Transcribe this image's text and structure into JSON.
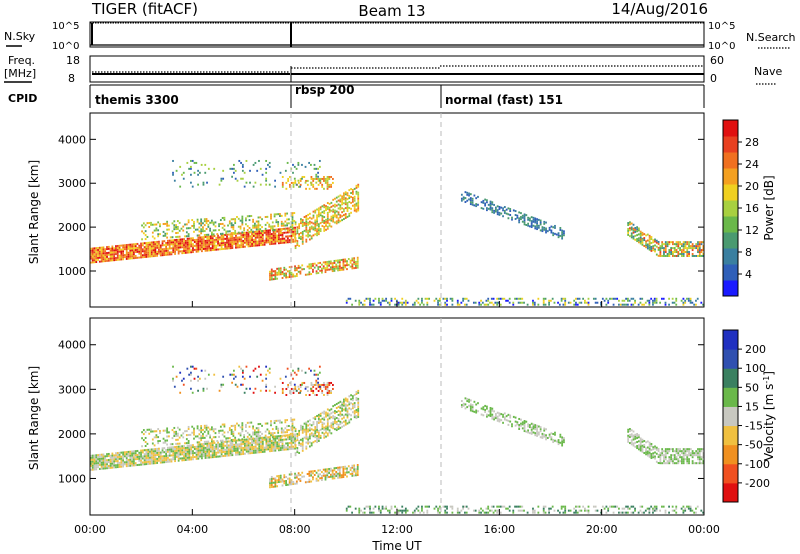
{
  "header": {
    "left": "TIGER (fitACF)",
    "center": "Beam 13",
    "right": "14/Aug/2016"
  },
  "strip_labels": {
    "nsky": "N.Sky",
    "nsearch": "N.Search",
    "freq_line1": "Freq.",
    "freq_line2": "[MHz]",
    "nave": "Nave",
    "cpid": "CPID",
    "nsky_ticks": [
      "10^5",
      "10^0"
    ],
    "nsearch_ticks": [
      "10^5",
      "10^0"
    ],
    "freq_ticks": [
      "18",
      "8"
    ],
    "nave_ticks": [
      "60",
      "0"
    ]
  },
  "cpid_segments": [
    {
      "label": "themis 3300",
      "start": 0,
      "end": 8
    },
    {
      "label": "rbsp 200",
      "start": 8,
      "end": 14
    },
    {
      "label": "normal (fast) 151",
      "start": 14,
      "end": 24
    }
  ],
  "colors": {
    "power": [
      "#1a1aff",
      "#2f5fb8",
      "#3a7fa0",
      "#4a9a70",
      "#6ab84a",
      "#a8d040",
      "#f0d020",
      "#f4a020",
      "#f07020",
      "#e84020",
      "#e01010"
    ],
    "velocity": [
      "#e01010",
      "#f05020",
      "#f09020",
      "#f0c040",
      "#c8c8c0",
      "#6ab84a",
      "#3a8060",
      "#3050b0",
      "#2030c0"
    ]
  },
  "chart_data": [
    {
      "type": "heatmap",
      "ylabel": "Slant Range [km]",
      "colorbar_label": "Power [dB]",
      "colorbar_ticks": [
        "4",
        "8",
        "12",
        "16",
        "20",
        "24",
        "28"
      ],
      "ylim": [
        180,
        4600
      ],
      "y_ticks": [
        1000,
        2000,
        3000,
        4000
      ],
      "colorscale_range": [
        0,
        32
      ]
    },
    {
      "type": "heatmap",
      "xlabel": "Time UT",
      "ylabel": "Slant Range [km]",
      "colorbar_label": "Velocity [m s-1]",
      "colorbar_ticks": [
        "200",
        "100",
        "50",
        "15",
        "-15",
        "-50",
        "-100",
        "-200"
      ],
      "ylim": [
        180,
        4600
      ],
      "y_ticks": [
        1000,
        2000,
        3000,
        4000
      ],
      "x_tick_labels": [
        "00:00",
        "04:00",
        "08:00",
        "12:00",
        "16:00",
        "20:00",
        "00:00"
      ],
      "xlim_hours": [
        0,
        24
      ],
      "vertical_markers_hours": [
        8,
        14
      ]
    }
  ]
}
